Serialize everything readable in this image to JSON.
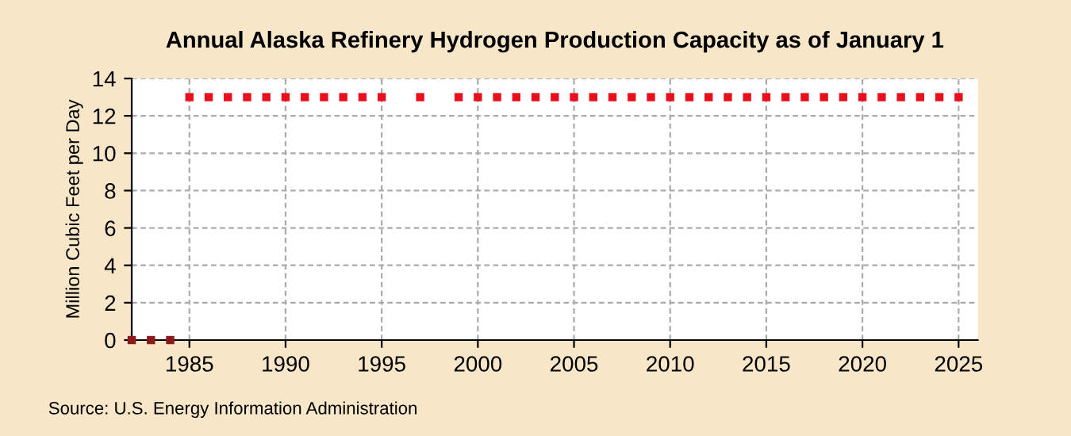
{
  "chart_data": {
    "type": "scatter",
    "title": "Annual Alaska Refinery Hydrogen Production Capacity as of January 1",
    "ylabel": "Million Cubic Feet per Day",
    "x": [
      1982,
      1983,
      1984,
      1985,
      1986,
      1987,
      1988,
      1989,
      1990,
      1991,
      1992,
      1993,
      1994,
      1995,
      1996,
      1997,
      1998,
      1999,
      2000,
      2001,
      2002,
      2003,
      2004,
      2005,
      2006,
      2007,
      2008,
      2009,
      2010,
      2011,
      2012,
      2013,
      2014,
      2015,
      2016,
      2017,
      2018,
      2019,
      2020,
      2021,
      2022,
      2023,
      2024,
      2025
    ],
    "values": [
      0,
      0,
      0,
      13,
      13,
      13,
      13,
      13,
      13,
      13,
      13,
      13,
      13,
      13,
      null,
      13,
      null,
      13,
      13,
      13,
      13,
      13,
      13,
      13,
      13,
      13,
      13,
      13,
      13,
      13,
      13,
      13,
      13,
      13,
      13,
      13,
      13,
      13,
      13,
      13,
      13,
      13,
      13,
      13
    ],
    "colors": [
      "#8b1a1a",
      "#8b1a1a",
      "#8b1a1a",
      "#e8101c",
      "#e8101c",
      "#e8101c",
      "#e8101c",
      "#e8101c",
      "#e8101c",
      "#e8101c",
      "#e8101c",
      "#e8101c",
      "#e8101c",
      "#e8101c",
      "#e8101c",
      "#e8101c",
      "#e8101c",
      "#e8101c",
      "#e8101c",
      "#e8101c",
      "#e8101c",
      "#e8101c",
      "#e8101c",
      "#e8101c",
      "#e8101c",
      "#e8101c",
      "#e8101c",
      "#e8101c",
      "#e8101c",
      "#e8101c",
      "#e8101c",
      "#e8101c",
      "#e8101c",
      "#e8101c",
      "#e8101c",
      "#e8101c",
      "#e8101c",
      "#e8101c",
      "#e8101c",
      "#e8101c",
      "#e8101c",
      "#e8101c",
      "#e8101c",
      "#e8101c"
    ],
    "xlim": [
      1982,
      2026
    ],
    "xticks": [
      1985,
      1990,
      1995,
      2000,
      2005,
      2010,
      2015,
      2020,
      2025
    ],
    "ylim": [
      0,
      14
    ],
    "yticks": [
      0,
      2,
      4,
      6,
      8,
      10,
      12,
      14
    ],
    "grid": true,
    "marker": "square",
    "annotations": [
      "Source: U.S. Energy Information Administration"
    ]
  }
}
